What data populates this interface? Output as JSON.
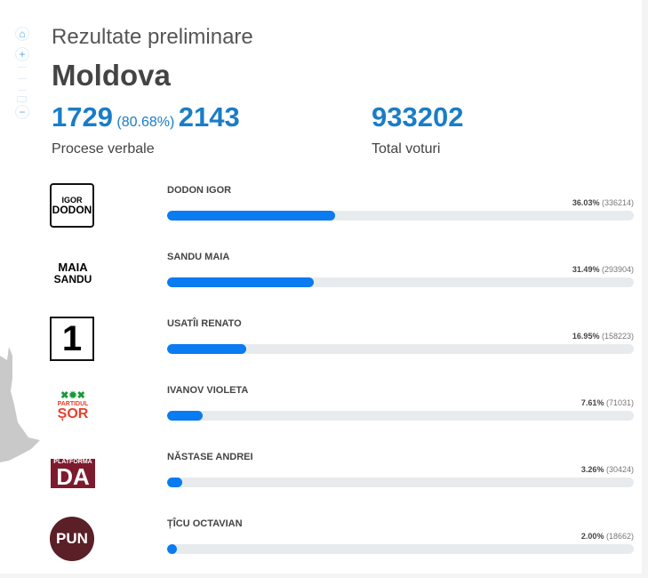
{
  "header": {
    "subtitle": "Rezultate preliminare",
    "title": "Moldova"
  },
  "stats": {
    "processed": "1729",
    "processed_pct": "(80.68%)",
    "total_pv": "2143",
    "pv_label": "Procese verbale",
    "total_votes": "933202",
    "votes_label": "Total voturi"
  },
  "candidates": [
    {
      "name": "DODON IGOR",
      "pct": "36.03%",
      "votes": "(336214)",
      "value": 36.03,
      "logo": "IGOR DODON",
      "color": "#000000"
    },
    {
      "name": "SANDU MAIA",
      "pct": "31.49%",
      "votes": "(293904)",
      "value": 31.49,
      "logo": "MAIA SANDU",
      "color": "#000000"
    },
    {
      "name": "USATÎI RENATO",
      "pct": "16.95%",
      "votes": "(158223)",
      "value": 16.95,
      "logo": "1",
      "color": "#000000"
    },
    {
      "name": "IVANOV VIOLETA",
      "pct": "7.61%",
      "votes": "(71031)",
      "value": 7.61,
      "logo": "PARTIDUL ȘOR",
      "color": "#e8412c"
    },
    {
      "name": "NĂSTASE ANDREI",
      "pct": "3.26%",
      "votes": "(30424)",
      "value": 3.26,
      "logo": "PLATFORMA DA",
      "color": "#7d1b2e"
    },
    {
      "name": "ȚÎCU OCTAVIAN",
      "pct": "2.00%",
      "votes": "(18662)",
      "value": 2.0,
      "logo": "PUN",
      "color": "#5a1f27"
    }
  ],
  "accent": "#0a7bf1"
}
